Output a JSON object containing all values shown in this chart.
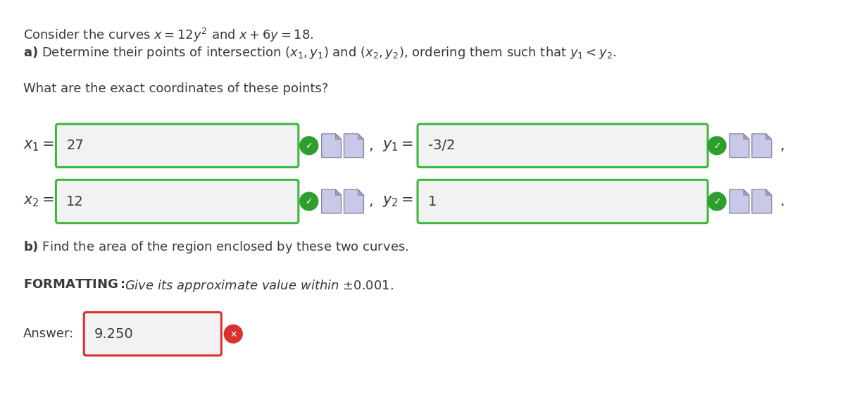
{
  "bg_color": "#ffffff",
  "x1_value": "27",
  "y1_value": "-3/2",
  "x2_value": "12",
  "y2_value": "1",
  "answer_value": "9.250",
  "green_border": "#3cb83c",
  "red_border": "#d93030",
  "box_bg": "#f2f2f2",
  "icon_bg": "#c8c8e8",
  "icon_border": "#888899",
  "text_color": "#3a3a3a",
  "check_green": "#2e9e2e",
  "red_x_color": "#d93030"
}
